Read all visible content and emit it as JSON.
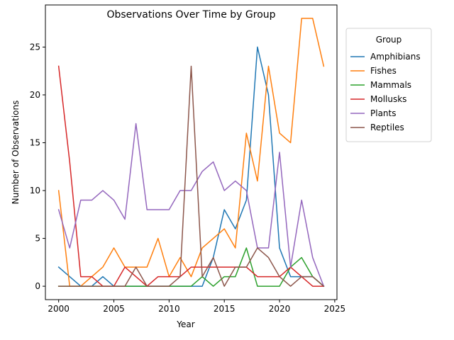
{
  "chart_data": {
    "type": "line",
    "title": "Observations Over Time by Group",
    "xlabel": "Year",
    "ylabel": "Number of Observations",
    "xlim": [
      1998.8,
      2025.2
    ],
    "ylim": [
      -1.4,
      29.4
    ],
    "xticks": [
      2000,
      2005,
      2010,
      2015,
      2020,
      2025
    ],
    "yticks": [
      0,
      5,
      10,
      15,
      20,
      25
    ],
    "grid": false,
    "legend": {
      "title": "Group",
      "placement": "outside right, top"
    },
    "x": [
      2000,
      2001,
      2002,
      2003,
      2004,
      2005,
      2006,
      2007,
      2008,
      2009,
      2010,
      2011,
      2012,
      2013,
      2014,
      2015,
      2016,
      2017,
      2018,
      2019,
      2020,
      2021,
      2022,
      2023,
      2024
    ],
    "series": [
      {
        "name": "Amphibians",
        "color": "#1f77b4",
        "values": [
          2,
          1,
          0,
          0,
          1,
          0,
          0,
          0,
          0,
          0,
          0,
          0,
          0,
          0,
          3,
          8,
          6,
          9,
          25,
          20,
          4,
          1,
          1,
          1,
          0
        ]
      },
      {
        "name": "Fishes",
        "color": "#ff7f0e",
        "values": [
          10,
          0,
          0,
          1,
          2,
          4,
          2,
          2,
          2,
          5,
          1,
          3,
          1,
          4,
          5,
          6,
          4,
          16,
          11,
          23,
          16,
          15,
          28,
          28,
          23
        ]
      },
      {
        "name": "Mammals",
        "color": "#2ca02c",
        "values": [
          0,
          0,
          0,
          0,
          0,
          0,
          0,
          0,
          0,
          0,
          0,
          0,
          0,
          1,
          0,
          1,
          1,
          4,
          0,
          0,
          0,
          2,
          3,
          1,
          0
        ]
      },
      {
        "name": "Mollusks",
        "color": "#d62728",
        "values": [
          23,
          13,
          1,
          1,
          0,
          0,
          2,
          1,
          0,
          1,
          1,
          1,
          2,
          2,
          2,
          2,
          2,
          2,
          1,
          1,
          1,
          2,
          1,
          0,
          0
        ]
      },
      {
        "name": "Plants",
        "color": "#9467bd",
        "values": [
          8,
          4,
          9,
          9,
          10,
          9,
          7,
          17,
          8,
          8,
          8,
          10,
          10,
          12,
          13,
          10,
          11,
          10,
          4,
          4,
          14,
          2,
          9,
          3,
          0
        ]
      },
      {
        "name": "Reptiles",
        "color": "#8c564b",
        "values": [
          0,
          0,
          0,
          0,
          0,
          0,
          0,
          2,
          0,
          0,
          0,
          1,
          23,
          1,
          3,
          0,
          2,
          2,
          4,
          3,
          1,
          0,
          1,
          1,
          0
        ]
      }
    ]
  }
}
